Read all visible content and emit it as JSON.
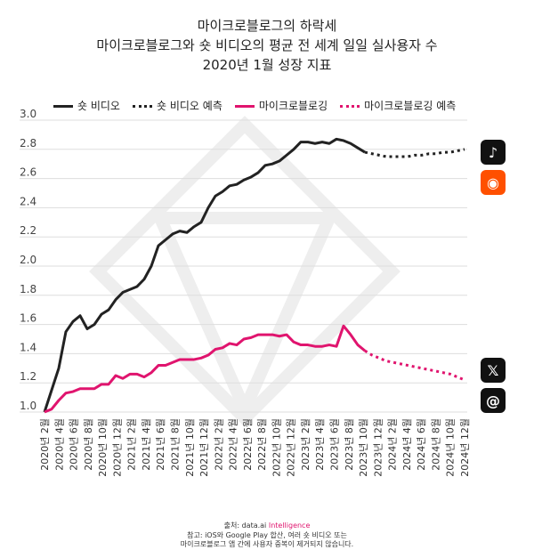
{
  "title_lines": [
    "마이크로블로그의 하락세",
    "마이크로블로그와 숏 비디오의 평균 전 세계 일일 실사용자 수",
    "2020년 1월 성장 지표"
  ],
  "footer": {
    "source_prefix": "출처: data.ai ",
    "source_brand": "Intelligence",
    "note1": "참고: iOS와 Google Play 합산, 여러 숏 비디오 또는",
    "note2": "마이크로블로그 앱 간에 사용자 중복이 제거되지 않습니다."
  },
  "icons": [
    "tiktok-icon",
    "kuaishou-icon",
    "x-icon",
    "threads-icon"
  ],
  "chart_data": {
    "type": "line",
    "title": "마이크로블로그의 하락세",
    "ylim": [
      1.0,
      3.0
    ],
    "yticks": [
      "1.0",
      "1.2",
      "1.4",
      "1.6",
      "1.8",
      "2.0",
      "2.2",
      "2.4",
      "2.6",
      "2.8",
      "3.0"
    ],
    "xtick_labels": [
      "2020년 2월",
      "2020년 4월",
      "2020년 6월",
      "2020년 8월",
      "2020년 10월",
      "2020년 12월",
      "2021년 2월",
      "2021년 4월",
      "2021년 6월",
      "2021년 8월",
      "2021년 10월",
      "2021년 12월",
      "2022년 2월",
      "2022년 4월",
      "2022년 6월",
      "2022년 8월",
      "2022년 10월",
      "2022년 12월",
      "2023년 2월",
      "2023년 4월",
      "2023년 6월",
      "2023년 8월",
      "2023년 10월",
      "2023년 12월",
      "2024년 2월",
      "2024년 4월",
      "2024년 6월",
      "2024년 8월",
      "2024년 10월",
      "2024년 12월"
    ],
    "x_start": "2020-01",
    "x_end": "2024-12",
    "x_step": "monthly",
    "grid": true,
    "legend_position": "top-left",
    "series": [
      {
        "name": "숏 비디오",
        "color": "#222222",
        "style": "solid",
        "values": [
          1.0,
          1.15,
          1.3,
          1.55,
          1.62,
          1.66,
          1.57,
          1.6,
          1.67,
          1.7,
          1.77,
          1.82,
          1.84,
          1.86,
          1.91,
          2.0,
          2.14,
          2.18,
          2.22,
          2.24,
          2.23,
          2.27,
          2.3,
          2.4,
          2.48,
          2.51,
          2.55,
          2.56,
          2.59,
          2.61,
          2.64,
          2.69,
          2.7,
          2.72,
          2.76,
          2.8,
          2.85,
          2.85,
          2.84,
          2.85,
          2.84,
          2.87,
          2.86,
          2.84,
          2.81,
          2.78
        ]
      },
      {
        "name": "숏 비디오 예측",
        "color": "#222222",
        "style": "dotted",
        "values": [
          2.77,
          2.76,
          2.75,
          2.75,
          2.75,
          2.75,
          2.76,
          2.76,
          2.77,
          2.77,
          2.78,
          2.78,
          2.79,
          2.8
        ]
      },
      {
        "name": "마이크로블로깅",
        "color": "#e0146e",
        "style": "solid",
        "values": [
          1.0,
          1.02,
          1.08,
          1.13,
          1.14,
          1.16,
          1.16,
          1.16,
          1.19,
          1.19,
          1.25,
          1.23,
          1.26,
          1.26,
          1.24,
          1.27,
          1.32,
          1.32,
          1.34,
          1.36,
          1.36,
          1.36,
          1.37,
          1.39,
          1.43,
          1.44,
          1.47,
          1.46,
          1.5,
          1.51,
          1.53,
          1.53,
          1.53,
          1.52,
          1.53,
          1.48,
          1.46,
          1.46,
          1.45,
          1.45,
          1.46,
          1.45,
          1.59,
          1.53,
          1.46,
          1.42
        ]
      },
      {
        "name": "마이크로블로깅 예측",
        "color": "#e0146e",
        "style": "dotted",
        "values": [
          1.39,
          1.37,
          1.35,
          1.34,
          1.33,
          1.32,
          1.31,
          1.3,
          1.29,
          1.28,
          1.27,
          1.26,
          1.24,
          1.22
        ]
      }
    ]
  }
}
